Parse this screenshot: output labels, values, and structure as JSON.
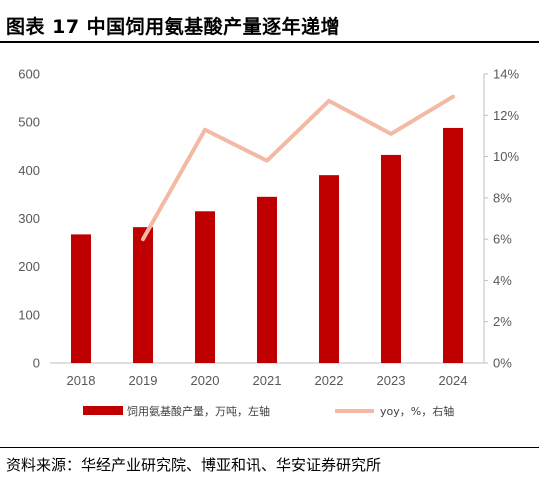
{
  "title": "图表 17 中国饲用氨基酸产量逐年递增",
  "source": "资料来源：华经产业研究院、博亚和讯、华安证券研究所",
  "colors": {
    "bar": "#C00000",
    "line": "#F4B9A5",
    "axis_text": "#595959",
    "axis_line": "#BFBFBF"
  },
  "chart_data": {
    "type": "bar",
    "categories": [
      "2018",
      "2019",
      "2020",
      "2021",
      "2022",
      "2023",
      "2024"
    ],
    "series": [
      {
        "name": "饲用氨基酸产量，万吨，左轴",
        "type": "bar",
        "axis": "left",
        "values": [
          267,
          282,
          315,
          345,
          390,
          432,
          488
        ]
      },
      {
        "name": "yoy，%，右轴",
        "type": "line",
        "axis": "right",
        "values": [
          null,
          6.0,
          11.3,
          9.8,
          12.7,
          11.1,
          12.9
        ]
      }
    ],
    "yleft": {
      "lim": [
        0,
        600
      ],
      "ticks": [
        "0",
        "100",
        "200",
        "300",
        "400",
        "500",
        "600"
      ]
    },
    "yright": {
      "lim": [
        0,
        14
      ],
      "ticks": [
        "0%",
        "2%",
        "4%",
        "6%",
        "8%",
        "10%",
        "12%",
        "14%"
      ]
    },
    "legend": "bottom",
    "grid": false
  }
}
